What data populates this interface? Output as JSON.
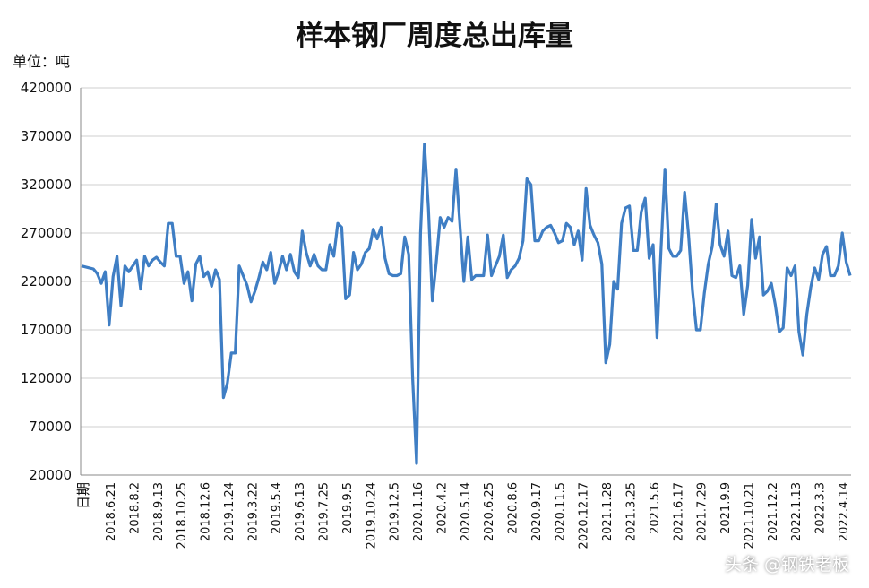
{
  "chart_data": {
    "type": "line",
    "title": "样本钢厂周度总出库量",
    "unit_label": "单位：吨",
    "xlabel": "日期",
    "ylabel": "",
    "ylim": [
      20000,
      420000
    ],
    "y_ticks": [
      "420000",
      "370000",
      "320000",
      "270000",
      "220000",
      "170000",
      "120000",
      "70000",
      "20000"
    ],
    "grid": true,
    "x_tick_labels": [
      "2018.6.21",
      "2018.8.2",
      "2018.9.13",
      "2018.10.25",
      "2018.12.6",
      "2019.1.24",
      "2019.3.22",
      "2019.5.4",
      "2019.6.13",
      "2019.7.25",
      "2019.9.5",
      "2019.10.24",
      "2019.12.5",
      "2020.1.16",
      "2020.4.2",
      "2020.5.14",
      "2020.6.25",
      "2020.8.6",
      "2020.9.17",
      "2020.11.5",
      "2020.12.17",
      "2021.1.28",
      "2021.3.25",
      "2021.5.6",
      "2021.6.17",
      "2021.7.29",
      "2021.9.9",
      "2021.10.21",
      "2021.12.2",
      "2022.1.13",
      "2022.3.3",
      "2022.4.14"
    ],
    "series": [
      {
        "color": "#3f7ec4",
        "values": [
          236000,
          235000,
          234000,
          233000,
          228000,
          218000,
          230000,
          175000,
          225000,
          246000,
          195000,
          236000,
          230000,
          236000,
          242000,
          212000,
          246000,
          236000,
          242000,
          245000,
          240000,
          236000,
          280000,
          280000,
          246000,
          246000,
          218000,
          230000,
          200000,
          238000,
          246000,
          225000,
          230000,
          215000,
          232000,
          222000,
          100000,
          115000,
          146000,
          146000,
          236000,
          226000,
          216000,
          199000,
          210000,
          224000,
          240000,
          232000,
          250000,
          218000,
          230000,
          246000,
          232000,
          248000,
          230000,
          224000,
          272000,
          250000,
          236000,
          248000,
          236000,
          232000,
          232000,
          258000,
          246000,
          280000,
          276000,
          202000,
          206000,
          250000,
          232000,
          238000,
          250000,
          254000,
          274000,
          264000,
          276000,
          244000,
          228000,
          226000,
          226000,
          228000,
          266000,
          248000,
          120000,
          32000,
          270000,
          362000,
          296000,
          200000,
          240000,
          286000,
          276000,
          286000,
          282000,
          336000,
          278000,
          220000,
          266000,
          222000,
          226000,
          226000,
          226000,
          268000,
          226000,
          236000,
          246000,
          268000,
          224000,
          232000,
          236000,
          244000,
          262000,
          326000,
          320000,
          262000,
          262000,
          272000,
          276000,
          278000,
          270000,
          260000,
          262000,
          280000,
          276000,
          258000,
          272000,
          242000,
          316000,
          278000,
          268000,
          260000,
          238000,
          136000,
          155000,
          220000,
          212000,
          280000,
          296000,
          298000,
          252000,
          252000,
          292000,
          306000,
          244000,
          258000,
          162000,
          252000,
          336000,
          254000,
          246000,
          246000,
          252000,
          312000,
          268000,
          210000,
          170000,
          170000,
          208000,
          238000,
          256000,
          300000,
          258000,
          246000,
          272000,
          226000,
          224000,
          236000,
          186000,
          216000,
          284000,
          244000,
          266000,
          206000,
          210000,
          218000,
          196000,
          168000,
          172000,
          234000,
          226000,
          236000,
          168000,
          144000,
          186000,
          214000,
          234000,
          222000,
          248000,
          256000,
          226000,
          226000,
          236000,
          270000,
          240000,
          226000
        ]
      }
    ]
  },
  "watermark": "头条 @钢铁老板"
}
